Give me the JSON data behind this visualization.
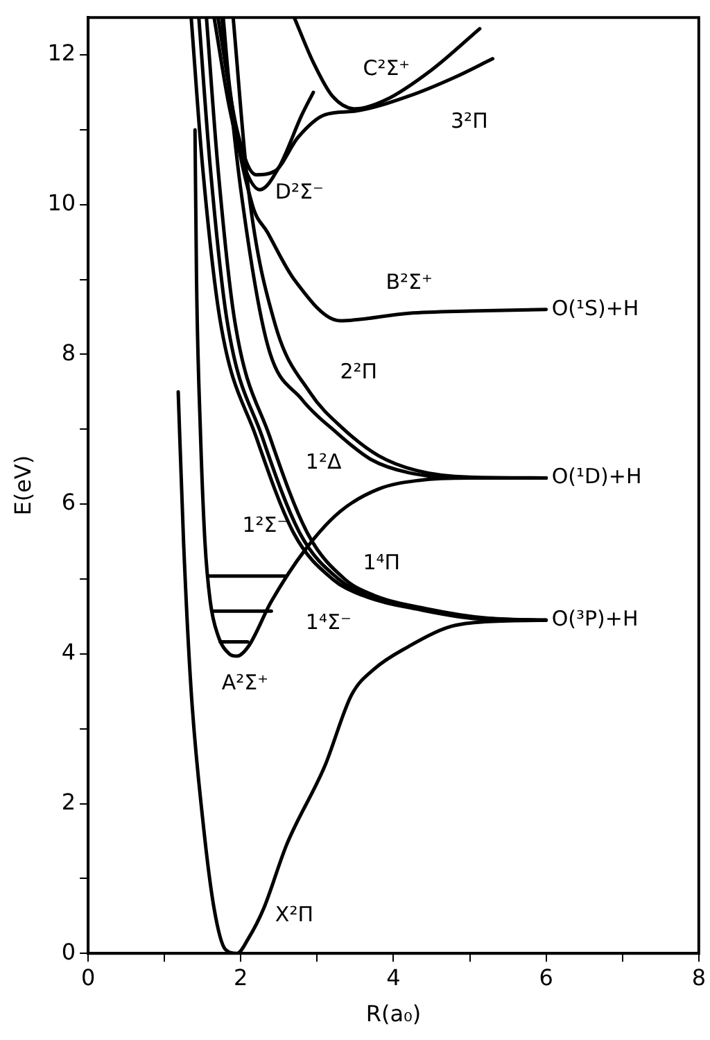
{
  "chart_data": {
    "type": "line",
    "xlabel": "R(a₀)",
    "ylabel": "E(eV)",
    "xlim": [
      0,
      8
    ],
    "xticks": [
      0,
      {
        "value": 1,
        "label": null
      },
      2,
      {
        "value": 3,
        "label": null
      },
      4,
      {
        "value": 5,
        "label": null
      },
      6,
      {
        "value": 7,
        "label": null
      },
      8
    ],
    "ylim": [
      0,
      12.5
    ],
    "yticks": [
      0,
      {
        "value": 1,
        "label": null
      },
      2,
      {
        "value": 3,
        "label": null
      },
      4,
      {
        "value": 5,
        "label": null
      },
      6,
      {
        "value": 7,
        "label": null
      },
      8,
      {
        "value": 9,
        "label": null
      },
      10,
      {
        "value": 11,
        "label": null
      },
      12
    ],
    "grid": false,
    "legend": false,
    "marker": "none",
    "line_style": "solid",
    "series": [
      {
        "name": "X²Π",
        "color": "#000000",
        "x": [
          1.18,
          1.25,
          1.35,
          1.5,
          1.65,
          1.8,
          1.95,
          2.1,
          2.3,
          2.6,
          3.1,
          3.45,
          3.75,
          4.2,
          4.7,
          5.2,
          6.0
        ],
        "values": [
          7.5,
          5.5,
          3.5,
          1.8,
          0.6,
          0.05,
          0,
          0.2,
          0.6,
          1.45,
          2.5,
          3.45,
          3.8,
          4.1,
          4.35,
          4.43,
          4.45
        ]
      },
      {
        "name": "A²Σ⁺",
        "color": "#000000",
        "x": [
          1.4,
          1.42,
          1.47,
          1.53,
          1.6,
          1.7,
          1.85,
          1.95,
          2.1,
          2.4,
          2.85,
          3.3,
          3.8,
          4.35,
          5.0,
          6.0
        ],
        "values": [
          11,
          9,
          7,
          5.5,
          4.7,
          4.25,
          4.0,
          3.97,
          4.1,
          4.7,
          5.4,
          5.9,
          6.2,
          6.32,
          6.35,
          6.35
        ]
      },
      {
        "name": "1²Σ⁻",
        "color": "#000000",
        "x": [
          1.35,
          1.5,
          1.73,
          2.2,
          2.7,
          3.2,
          3.6,
          4.35,
          5.1,
          6.0
        ],
        "values": [
          12.5,
          10.5,
          8.45,
          6.9,
          5.6,
          5.0,
          4.78,
          4.59,
          4.47,
          4.45
        ]
      },
      {
        "name": "1⁴Σ⁻",
        "color": "#000000",
        "x": [
          1.45,
          1.6,
          1.82,
          2.28,
          2.78,
          3.28,
          3.68,
          4.4,
          5.15,
          6.0
        ],
        "values": [
          12.5,
          10.5,
          8.45,
          6.9,
          5.6,
          5.0,
          4.78,
          4.59,
          4.47,
          4.45
        ]
      },
      {
        "name": "1⁴Π",
        "color": "#000000",
        "x": [
          1.55,
          1.7,
          1.92,
          2.38,
          2.88,
          3.36,
          3.75,
          4.45,
          5.2,
          6.0
        ],
        "values": [
          12.5,
          10.5,
          8.45,
          6.9,
          5.6,
          5.0,
          4.78,
          4.6,
          4.48,
          4.45
        ]
      },
      {
        "name": "1²Δ",
        "color": "#000000",
        "x": [
          1.75,
          2.0,
          2.35,
          2.8,
          3.25,
          3.7,
          4.2,
          5.0,
          6.0
        ],
        "values": [
          12.5,
          10.2,
          8.13,
          7.4,
          6.96,
          6.6,
          6.42,
          6.35,
          6.35
        ]
      },
      {
        "name": "2²Π",
        "color": "#000000",
        "x": [
          1.9,
          2.1,
          2.45,
          2.9,
          3.35,
          3.8,
          4.3,
          5.0,
          6.0
        ],
        "values": [
          12.5,
          10.2,
          8.4,
          7.5,
          7.0,
          6.65,
          6.45,
          6.36,
          6.35
        ]
      },
      {
        "name": "B²Σ⁺",
        "color": "#000000",
        "x": [
          1.77,
          1.85,
          2.15,
          2.35,
          2.7,
          3.3,
          4.2,
          5.0,
          6.0
        ],
        "values": [
          12.5,
          11.6,
          10.0,
          9.63,
          9.0,
          8.45,
          8.55,
          8.58,
          8.6
        ]
      },
      {
        "name": "D²Σ⁻",
        "color": "#000000",
        "x": [
          1.65,
          1.85,
          2.05,
          2.25,
          2.5,
          2.8,
          2.95
        ],
        "values": [
          12.5,
          11.3,
          10.5,
          10.2,
          10.5,
          11.2,
          11.5
        ]
      },
      {
        "name": "3²Π",
        "color": "#000000",
        "x": [
          1.7,
          1.95,
          2.2,
          2.45,
          2.75,
          3.1,
          3.5,
          4.2,
          4.8,
          5.3
        ],
        "values": [
          12.5,
          11.0,
          10.4,
          10.45,
          10.9,
          11.2,
          11.25,
          11.45,
          11.7,
          11.95
        ]
      },
      {
        "name": "C²Σ⁺",
        "color": "#000000",
        "x": [
          2.7,
          2.95,
          3.2,
          3.5,
          3.9,
          4.5,
          5.13
        ],
        "values": [
          12.5,
          11.9,
          11.45,
          11.28,
          11.4,
          11.8,
          12.35
        ]
      },
      {
        "color": "#000000",
        "x": [
          1.58,
          2.58
        ],
        "values": [
          5.04,
          5.04
        ]
      },
      {
        "color": "#000000",
        "x": [
          1.64,
          2.4
        ],
        "values": [
          4.57,
          4.57
        ]
      },
      {
        "color": "#000000",
        "x": [
          1.73,
          2.09
        ],
        "values": [
          4.16,
          4.16
        ]
      }
    ],
    "annotations": [
      "O(¹S)+H",
      "O(¹D)+H",
      "O(³P)+H"
    ]
  }
}
